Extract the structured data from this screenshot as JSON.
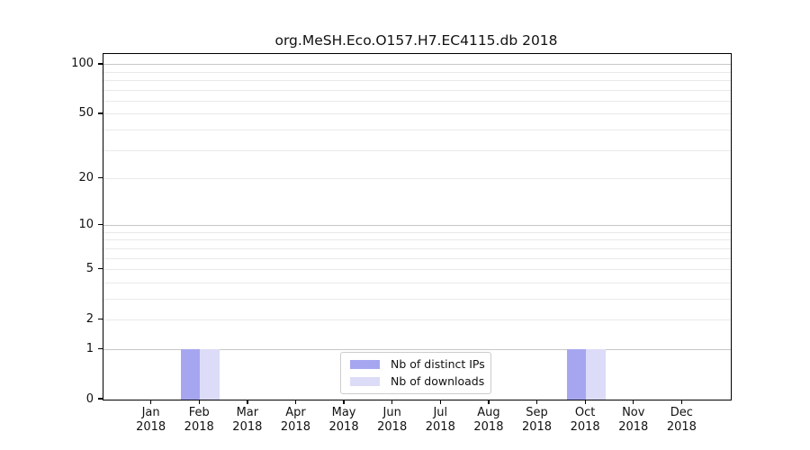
{
  "title": "org.MeSH.Eco.O157.H7.EC4115.db 2018",
  "colors": {
    "bar_distinct_ips": "#a6a6f0",
    "bar_downloads": "#dcdcf8",
    "grid_major": "#c7c7c7",
    "grid_minor": "#e9e9e9",
    "axis": "#000000",
    "legend_border": "#cccccc",
    "text": "#111111",
    "background": "#ffffff"
  },
  "legend": {
    "items": [
      {
        "label": "Nb of distinct IPs"
      },
      {
        "label": "Nb of downloads"
      }
    ]
  },
  "chart_data": {
    "type": "bar",
    "title": "org.MeSH.Eco.O157.H7.EC4115.db 2018",
    "categories": [
      "Jan",
      "Feb",
      "Mar",
      "Apr",
      "May",
      "Jun",
      "Jul",
      "Aug",
      "Sep",
      "Oct",
      "Nov",
      "Dec"
    ],
    "category_year": "2018",
    "series": [
      {
        "name": "Nb of distinct IPs",
        "color": "#a6a6f0",
        "values": [
          0,
          1,
          0,
          0,
          0,
          0,
          0,
          0,
          0,
          1,
          0,
          0
        ]
      },
      {
        "name": "Nb of downloads",
        "color": "#dcdcf8",
        "values": [
          0,
          1,
          0,
          0,
          0,
          0,
          0,
          0,
          0,
          1,
          0,
          0
        ]
      }
    ],
    "xlabel": "",
    "ylabel": "",
    "yscale": "log1p",
    "ylim": [
      0,
      116
    ],
    "xlim": [
      -1,
      12
    ],
    "yticks": [
      0,
      1,
      2,
      5,
      10,
      20,
      50,
      100
    ],
    "grid": true,
    "grid_major_values": [
      1,
      10,
      100
    ],
    "grid_minor_values": [
      2,
      3,
      4,
      5,
      6,
      7,
      8,
      9,
      20,
      30,
      40,
      50,
      60,
      70,
      80,
      90
    ],
    "legend_position": "lower center",
    "bar_width_units": 0.4
  }
}
